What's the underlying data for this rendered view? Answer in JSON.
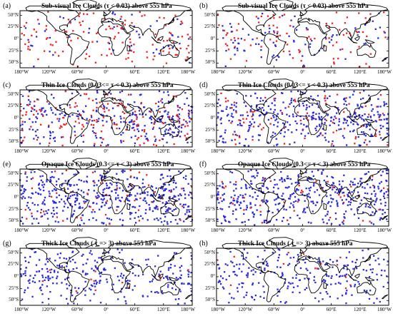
{
  "panels": [
    {
      "letter": "(a)",
      "title": "Sub-visual Ice Clouds (τ < 0.03) above 555 hPa",
      "red_share": 0.75,
      "density": 0.35
    },
    {
      "letter": "(b)",
      "title": "Sub-visual Ice Clouds (τ < 0.03) above 555 hPa",
      "red_share": 0.55,
      "density": 0.35
    },
    {
      "letter": "(c)",
      "title": "Thin Ice Clouds (0.03<= τ < 0.3) above 555 hPa",
      "red_share": 0.4,
      "density": 0.85
    },
    {
      "letter": "(d)",
      "title": "Thin Ice Clouds (0.03<= τ < 0.3) above 555 hPa",
      "red_share": 0.2,
      "density": 0.85
    },
    {
      "letter": "(e)",
      "title": "Opaque Ice Clouds (0.3<= τ < 3) above 555 hPa",
      "red_share": 0.1,
      "density": 1.0
    },
    {
      "letter": "(f)",
      "title": "Opaque Ice Clouds (0.3<= τ < 3) above 555 hPa",
      "red_share": 0.08,
      "density": 0.9
    },
    {
      "letter": "(g)",
      "title": "Thick Ice Clouds ( τ => 3) above 555 hPa",
      "red_share": 0.05,
      "density": 0.55
    },
    {
      "letter": "(h)",
      "title": "Thick Ice Clouds ( τ => 3) above 555 hPa",
      "red_share": 0.08,
      "density": 0.5
    }
  ],
  "lat_ticks": [
    "50°N",
    "25°N",
    "0°",
    "25°S",
    "50°S"
  ],
  "lon_ticks": [
    "180°W",
    "120°W",
    "60°W",
    "0°",
    "60°E",
    "120°E",
    "180°W"
  ],
  "colors": {
    "red": "#e8262a",
    "blue": "#2b2bd9",
    "coast": "#000000",
    "frame": "#000000"
  }
}
